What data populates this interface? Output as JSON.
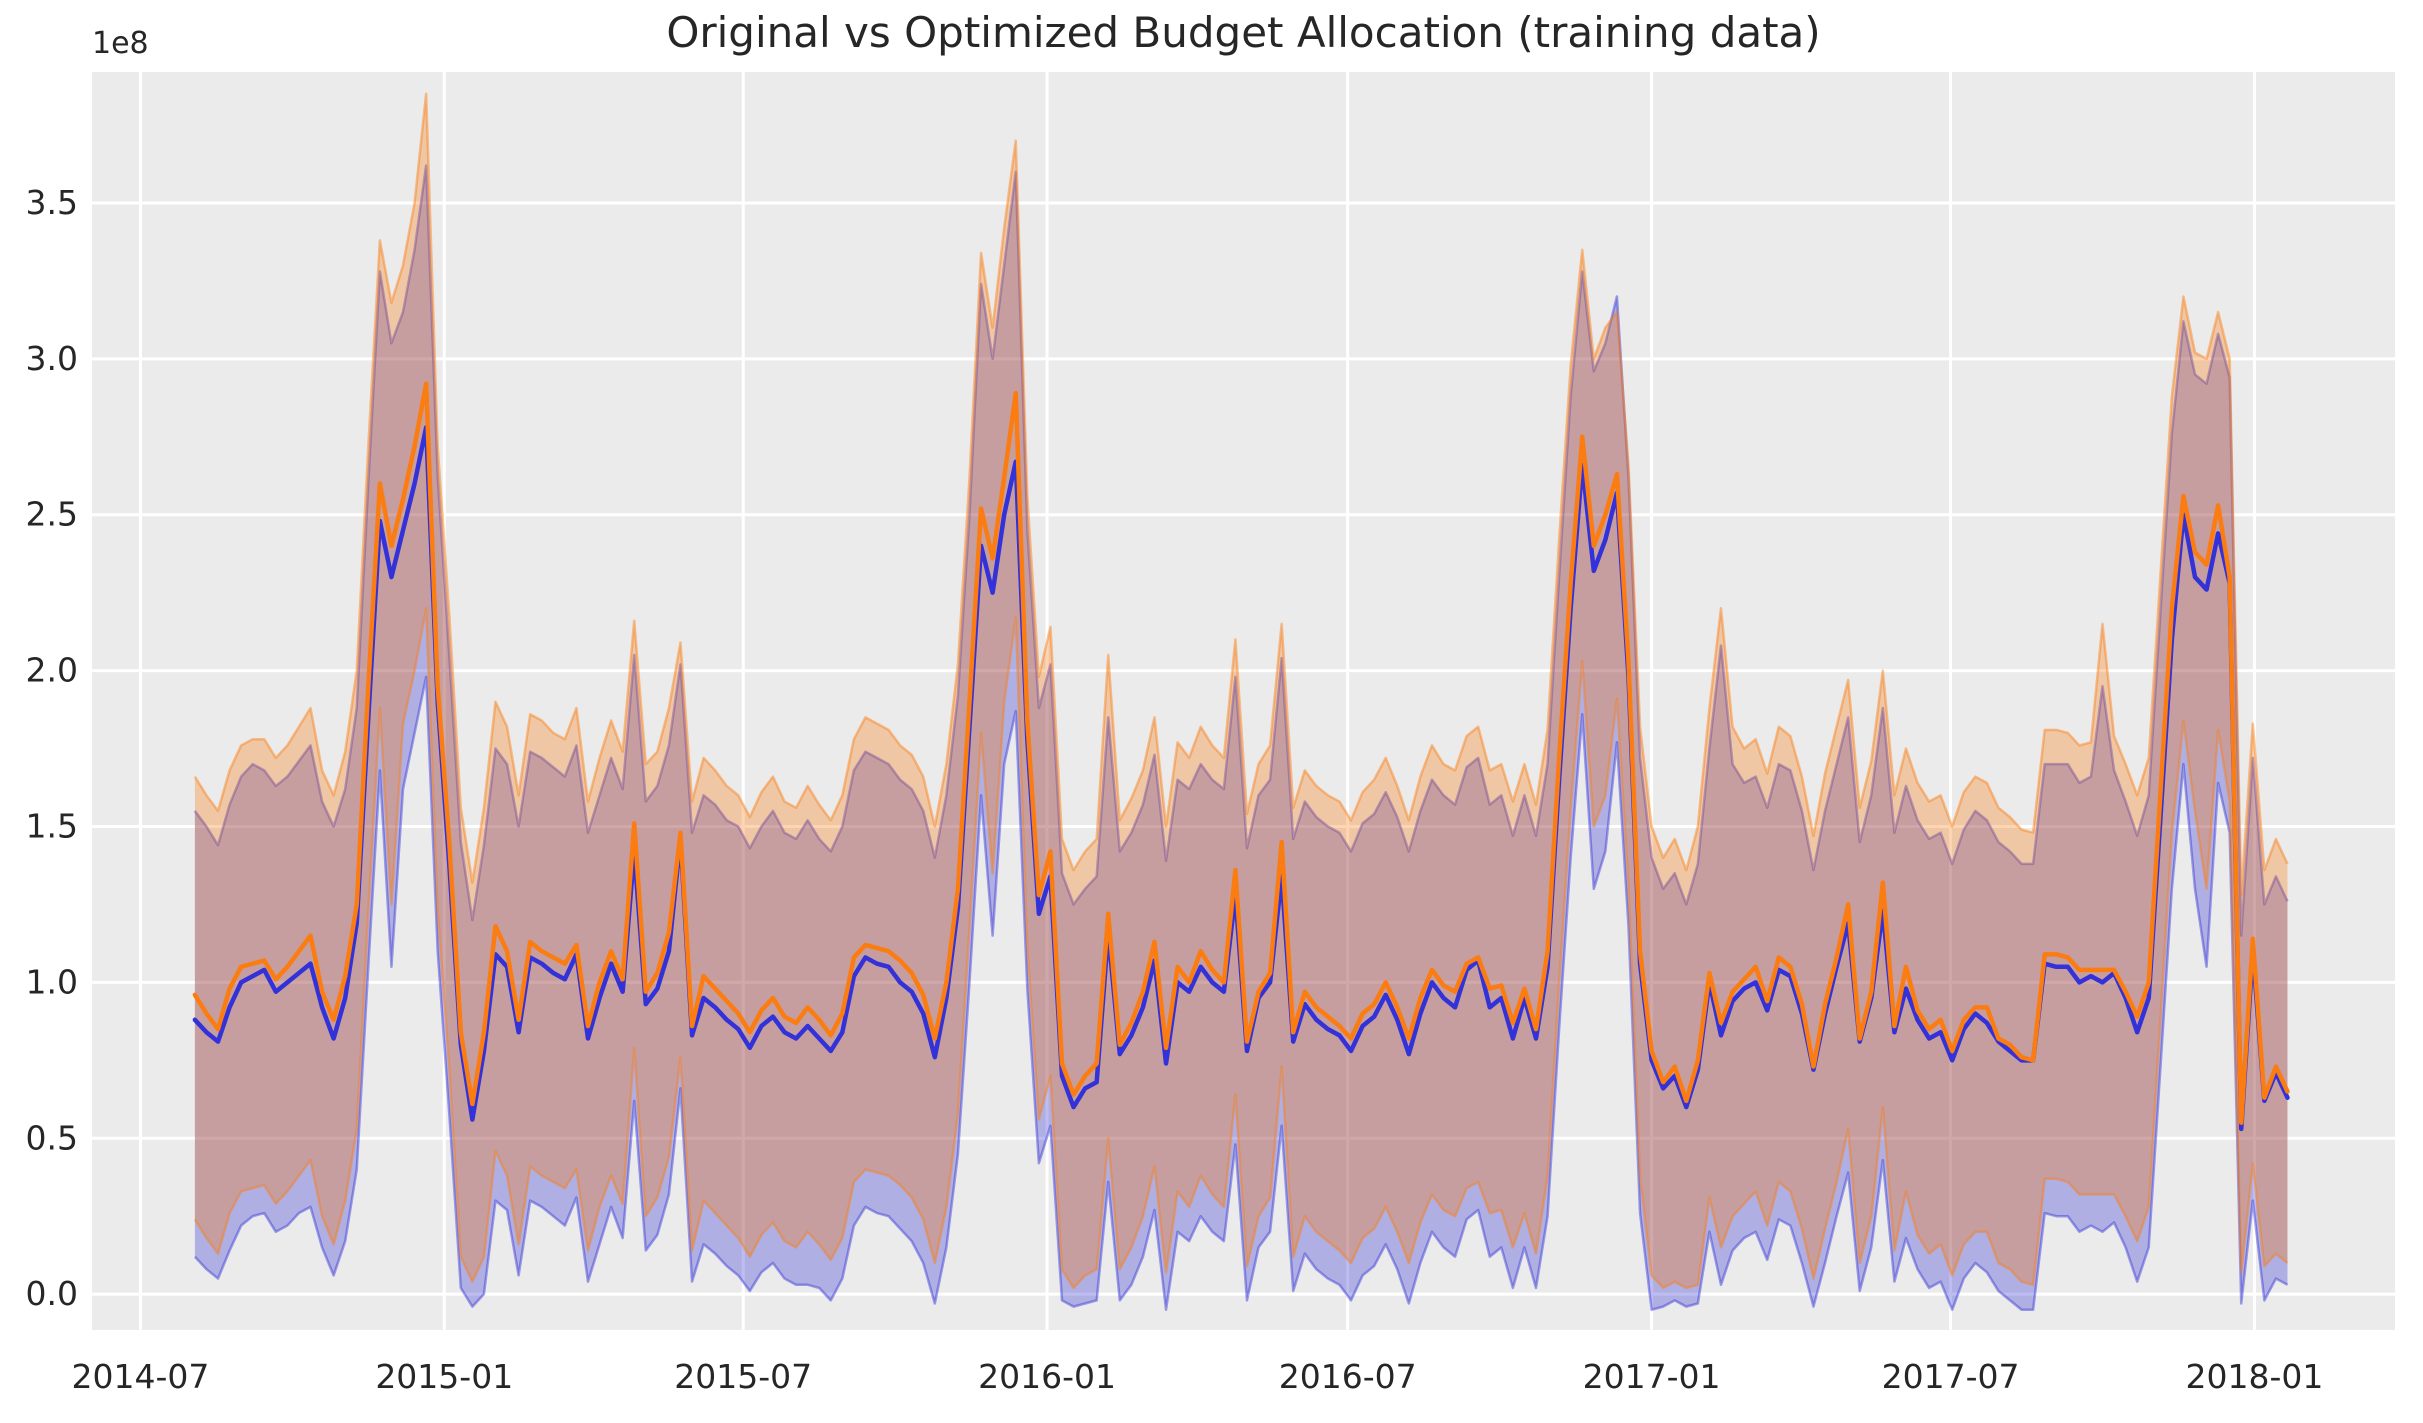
{
  "title": "Original vs Optimized Budget Allocation (training data)",
  "offset_label": "1e8",
  "colors": {
    "plot_background": "#ebebeb",
    "grid": "#ffffff",
    "text": "#262626",
    "original_line": "#3332d8",
    "optimized_line": "#fb7c11"
  },
  "chart_data": {
    "type": "line",
    "title": "Original vs Optimized Budget Allocation (training data)",
    "xlabel": "",
    "ylabel": "",
    "y_offset_text": "1e8",
    "x_start_date": "2014-08-03",
    "x_frequency": "weekly",
    "n_points": 182,
    "grid": true,
    "legend_position": "none",
    "xlim_weeks": [
      -8.9,
      190.3
    ],
    "ylim": [
      -0.115,
      3.92
    ],
    "x_tick_labels": [
      "2014-07",
      "2015-01",
      "2015-07",
      "2016-01",
      "2016-07",
      "2017-01",
      "2017-07",
      "2018-01"
    ],
    "x_tick_weeks": [
      -4.71,
      21.57,
      47.43,
      73.71,
      99.71,
      126.0,
      151.86,
      178.14
    ],
    "y_tick_labels": [
      "0.0",
      "0.5",
      "1.0",
      "1.5",
      "2.0",
      "2.5",
      "3.0",
      "3.5"
    ],
    "y_tick_values": [
      0.0,
      0.5,
      1.0,
      1.5,
      2.0,
      2.5,
      3.0,
      3.5
    ],
    "series": [
      {
        "name": "original",
        "color": "#3332d8",
        "band_alpha": 0.32,
        "values": [
          0.88,
          0.84,
          0.81,
          0.92,
          1.0,
          1.02,
          1.04,
          0.97,
          1.0,
          1.03,
          1.06,
          0.92,
          0.82,
          0.95,
          1.19,
          1.85,
          2.48,
          2.3,
          2.45,
          2.6,
          2.78,
          1.9,
          1.38,
          0.8,
          0.56,
          0.78,
          1.09,
          1.05,
          0.84,
          1.08,
          1.06,
          1.03,
          1.01,
          1.09,
          0.82,
          0.95,
          1.06,
          0.97,
          1.42,
          0.93,
          0.98,
          1.1,
          1.46,
          0.83,
          0.95,
          0.92,
          0.88,
          0.85,
          0.79,
          0.86,
          0.89,
          0.84,
          0.82,
          0.86,
          0.82,
          0.78,
          0.84,
          1.02,
          1.08,
          1.06,
          1.05,
          1.0,
          0.97,
          0.9,
          0.76,
          0.95,
          1.24,
          1.82,
          2.4,
          2.25,
          2.5,
          2.67,
          1.78,
          1.22,
          1.34,
          0.7,
          0.6,
          0.66,
          0.68,
          1.16,
          0.77,
          0.83,
          0.92,
          1.07,
          0.74,
          1.0,
          0.97,
          1.05,
          1.0,
          0.97,
          1.28,
          0.78,
          0.95,
          1.0,
          1.34,
          0.81,
          0.93,
          0.88,
          0.85,
          0.83,
          0.78,
          0.86,
          0.89,
          0.96,
          0.88,
          0.77,
          0.9,
          1.0,
          0.95,
          0.92,
          1.04,
          1.07,
          0.92,
          0.95,
          0.82,
          0.95,
          0.82,
          1.05,
          1.65,
          2.2,
          2.66,
          2.32,
          2.42,
          2.57,
          1.98,
          1.06,
          0.75,
          0.66,
          0.7,
          0.6,
          0.72,
          1.0,
          0.83,
          0.94,
          0.98,
          1.0,
          0.91,
          1.04,
          1.02,
          0.9,
          0.72,
          0.9,
          1.05,
          1.19,
          0.81,
          0.95,
          1.23,
          0.84,
          0.98,
          0.88,
          0.82,
          0.84,
          0.75,
          0.85,
          0.9,
          0.87,
          0.81,
          0.78,
          0.75,
          0.75,
          1.06,
          1.05,
          1.05,
          1.0,
          1.02,
          1.0,
          1.03,
          0.95,
          0.84,
          0.95,
          1.52,
          2.1,
          2.5,
          2.3,
          2.26,
          2.44,
          2.28,
          0.53,
          1.1,
          0.62,
          0.71,
          0.63
        ],
        "band_low": [
          0.12,
          0.08,
          0.05,
          0.14,
          0.22,
          0.25,
          0.26,
          0.2,
          0.22,
          0.26,
          0.28,
          0.15,
          0.06,
          0.17,
          0.4,
          1.05,
          1.68,
          1.05,
          1.62,
          1.8,
          1.98,
          1.1,
          0.58,
          0.02,
          -0.04,
          0.0,
          0.3,
          0.27,
          0.06,
          0.3,
          0.28,
          0.25,
          0.22,
          0.31,
          0.04,
          0.16,
          0.28,
          0.18,
          0.62,
          0.14,
          0.19,
          0.32,
          0.66,
          0.04,
          0.16,
          0.13,
          0.09,
          0.06,
          0.01,
          0.07,
          0.1,
          0.05,
          0.03,
          0.03,
          0.02,
          -0.02,
          0.05,
          0.22,
          0.28,
          0.26,
          0.25,
          0.21,
          0.17,
          0.1,
          -0.03,
          0.15,
          0.45,
          1.0,
          1.6,
          1.15,
          1.7,
          1.87,
          0.98,
          0.42,
          0.54,
          -0.02,
          -0.04,
          -0.03,
          -0.02,
          0.36,
          -0.02,
          0.03,
          0.12,
          0.27,
          -0.05,
          0.2,
          0.17,
          0.25,
          0.2,
          0.17,
          0.48,
          -0.02,
          0.15,
          0.2,
          0.54,
          0.01,
          0.13,
          0.08,
          0.05,
          0.03,
          -0.02,
          0.06,
          0.09,
          0.16,
          0.08,
          -0.03,
          0.1,
          0.2,
          0.15,
          0.12,
          0.24,
          0.27,
          0.12,
          0.15,
          0.02,
          0.15,
          0.02,
          0.25,
          0.85,
          1.4,
          1.86,
          1.3,
          1.42,
          1.77,
          1.18,
          0.26,
          -0.05,
          -0.04,
          -0.02,
          -0.04,
          -0.03,
          0.2,
          0.03,
          0.14,
          0.18,
          0.2,
          0.11,
          0.24,
          0.22,
          0.1,
          -0.04,
          0.1,
          0.25,
          0.39,
          0.01,
          0.15,
          0.43,
          0.04,
          0.18,
          0.08,
          0.02,
          0.04,
          -0.05,
          0.05,
          0.1,
          0.07,
          0.01,
          -0.02,
          -0.05,
          -0.05,
          0.26,
          0.25,
          0.25,
          0.2,
          0.22,
          0.2,
          0.23,
          0.15,
          0.04,
          0.15,
          0.72,
          1.3,
          1.7,
          1.3,
          1.05,
          1.64,
          1.48,
          -0.03,
          0.3,
          -0.02,
          0.05,
          0.03
        ],
        "band_high": [
          1.55,
          1.5,
          1.44,
          1.57,
          1.66,
          1.7,
          1.68,
          1.63,
          1.66,
          1.71,
          1.76,
          1.58,
          1.5,
          1.62,
          1.88,
          2.6,
          3.28,
          3.05,
          3.15,
          3.35,
          3.62,
          2.62,
          2.05,
          1.45,
          1.2,
          1.44,
          1.75,
          1.7,
          1.5,
          1.74,
          1.72,
          1.69,
          1.66,
          1.76,
          1.48,
          1.6,
          1.72,
          1.62,
          2.05,
          1.58,
          1.63,
          1.76,
          2.02,
          1.48,
          1.6,
          1.57,
          1.52,
          1.5,
          1.43,
          1.5,
          1.55,
          1.48,
          1.46,
          1.52,
          1.46,
          1.42,
          1.5,
          1.68,
          1.74,
          1.72,
          1.7,
          1.65,
          1.62,
          1.55,
          1.4,
          1.6,
          1.92,
          2.5,
          3.24,
          3.0,
          3.3,
          3.6,
          2.45,
          1.88,
          2.02,
          1.35,
          1.25,
          1.3,
          1.34,
          1.85,
          1.42,
          1.48,
          1.57,
          1.73,
          1.39,
          1.65,
          1.62,
          1.7,
          1.65,
          1.62,
          1.98,
          1.43,
          1.6,
          1.65,
          2.04,
          1.46,
          1.58,
          1.53,
          1.5,
          1.48,
          1.42,
          1.51,
          1.54,
          1.61,
          1.53,
          1.42,
          1.55,
          1.65,
          1.6,
          1.57,
          1.69,
          1.72,
          1.57,
          1.6,
          1.47,
          1.6,
          1.47,
          1.7,
          2.3,
          2.88,
          3.28,
          2.96,
          3.05,
          3.2,
          2.62,
          1.72,
          1.4,
          1.3,
          1.35,
          1.25,
          1.38,
          1.75,
          2.08,
          1.7,
          1.64,
          1.66,
          1.56,
          1.7,
          1.68,
          1.55,
          1.36,
          1.55,
          1.7,
          1.85,
          1.45,
          1.6,
          1.88,
          1.48,
          1.63,
          1.52,
          1.46,
          1.48,
          1.38,
          1.49,
          1.55,
          1.52,
          1.45,
          1.42,
          1.38,
          1.38,
          1.7,
          1.7,
          1.7,
          1.64,
          1.66,
          1.95,
          1.68,
          1.58,
          1.47,
          1.6,
          2.18,
          2.76,
          3.12,
          2.95,
          2.92,
          3.08,
          2.94,
          1.15,
          1.72,
          1.25,
          1.34,
          1.26
        ]
      },
      {
        "name": "optimized",
        "color": "#fb7c11",
        "band_alpha": 0.32,
        "values": [
          0.96,
          0.9,
          0.85,
          0.98,
          1.05,
          1.06,
          1.07,
          1.01,
          1.05,
          1.1,
          1.15,
          0.97,
          0.88,
          1.02,
          1.25,
          1.95,
          2.6,
          2.4,
          2.55,
          2.72,
          2.92,
          1.95,
          1.45,
          0.84,
          0.61,
          0.84,
          1.18,
          1.1,
          0.88,
          1.13,
          1.1,
          1.08,
          1.06,
          1.12,
          0.86,
          1.0,
          1.1,
          1.01,
          1.51,
          0.97,
          1.03,
          1.16,
          1.48,
          0.86,
          1.02,
          0.98,
          0.94,
          0.9,
          0.84,
          0.91,
          0.95,
          0.89,
          0.87,
          0.92,
          0.88,
          0.83,
          0.9,
          1.08,
          1.12,
          1.11,
          1.1,
          1.07,
          1.03,
          0.96,
          0.82,
          1.0,
          1.3,
          1.9,
          2.52,
          2.36,
          2.62,
          2.89,
          1.84,
          1.28,
          1.42,
          0.74,
          0.64,
          0.7,
          0.74,
          1.22,
          0.8,
          0.87,
          0.97,
          1.13,
          0.79,
          1.05,
          1.0,
          1.1,
          1.04,
          1.0,
          1.36,
          0.81,
          0.97,
          1.03,
          1.45,
          0.84,
          0.97,
          0.92,
          0.89,
          0.86,
          0.82,
          0.9,
          0.93,
          1.0,
          0.92,
          0.82,
          0.95,
          1.04,
          0.99,
          0.97,
          1.06,
          1.08,
          0.98,
          0.99,
          0.87,
          0.98,
          0.85,
          1.1,
          1.72,
          2.28,
          2.75,
          2.4,
          2.5,
          2.63,
          2.03,
          1.1,
          0.78,
          0.68,
          0.73,
          0.62,
          0.75,
          1.03,
          0.87,
          0.97,
          1.01,
          1.05,
          0.94,
          1.08,
          1.05,
          0.93,
          0.73,
          0.93,
          1.08,
          1.25,
          0.82,
          0.97,
          1.32,
          0.86,
          1.05,
          0.91,
          0.85,
          0.88,
          0.78,
          0.88,
          0.92,
          0.92,
          0.82,
          0.8,
          0.76,
          0.75,
          1.09,
          1.09,
          1.08,
          1.04,
          1.04,
          1.04,
          1.04,
          0.97,
          0.89,
          1.0,
          1.6,
          2.2,
          2.56,
          2.38,
          2.34,
          2.53,
          2.3,
          0.55,
          1.14,
          0.63,
          0.73,
          0.65
        ],
        "band_low": [
          0.24,
          0.18,
          0.13,
          0.26,
          0.33,
          0.34,
          0.35,
          0.29,
          0.33,
          0.38,
          0.43,
          0.25,
          0.16,
          0.3,
          0.53,
          1.23,
          1.88,
          1.25,
          1.83,
          2.0,
          2.2,
          1.23,
          0.73,
          0.12,
          0.04,
          0.12,
          0.46,
          0.38,
          0.16,
          0.41,
          0.38,
          0.36,
          0.34,
          0.4,
          0.14,
          0.28,
          0.38,
          0.29,
          0.79,
          0.25,
          0.31,
          0.44,
          0.76,
          0.14,
          0.3,
          0.26,
          0.22,
          0.18,
          0.12,
          0.19,
          0.23,
          0.17,
          0.15,
          0.2,
          0.16,
          0.11,
          0.18,
          0.36,
          0.4,
          0.39,
          0.38,
          0.35,
          0.31,
          0.24,
          0.1,
          0.28,
          0.58,
          1.18,
          1.8,
          1.35,
          1.9,
          2.17,
          1.12,
          0.56,
          0.7,
          0.08,
          0.02,
          0.06,
          0.08,
          0.5,
          0.08,
          0.15,
          0.25,
          0.41,
          0.07,
          0.33,
          0.28,
          0.38,
          0.32,
          0.28,
          0.64,
          0.09,
          0.25,
          0.31,
          0.73,
          0.12,
          0.25,
          0.2,
          0.17,
          0.14,
          0.1,
          0.18,
          0.21,
          0.28,
          0.2,
          0.1,
          0.23,
          0.32,
          0.27,
          0.25,
          0.34,
          0.36,
          0.26,
          0.27,
          0.15,
          0.26,
          0.13,
          0.38,
          1.0,
          1.56,
          2.03,
          1.5,
          1.6,
          1.91,
          1.31,
          0.38,
          0.06,
          0.02,
          0.04,
          0.02,
          0.03,
          0.31,
          0.15,
          0.25,
          0.29,
          0.33,
          0.22,
          0.36,
          0.33,
          0.21,
          0.05,
          0.21,
          0.36,
          0.53,
          0.1,
          0.25,
          0.6,
          0.14,
          0.33,
          0.19,
          0.13,
          0.16,
          0.06,
          0.16,
          0.2,
          0.2,
          0.1,
          0.08,
          0.04,
          0.03,
          0.37,
          0.37,
          0.36,
          0.32,
          0.32,
          0.32,
          0.32,
          0.25,
          0.17,
          0.28,
          0.88,
          1.48,
          1.84,
          1.55,
          1.3,
          1.81,
          1.58,
          0.07,
          0.42,
          0.09,
          0.13,
          0.1
        ],
        "band_high": [
          1.66,
          1.6,
          1.55,
          1.68,
          1.76,
          1.78,
          1.78,
          1.72,
          1.76,
          1.82,
          1.88,
          1.68,
          1.6,
          1.74,
          2.0,
          2.72,
          3.38,
          3.18,
          3.3,
          3.5,
          3.85,
          2.72,
          2.18,
          1.56,
          1.32,
          1.56,
          1.9,
          1.82,
          1.6,
          1.86,
          1.84,
          1.8,
          1.78,
          1.88,
          1.58,
          1.72,
          1.84,
          1.74,
          2.16,
          1.7,
          1.74,
          1.88,
          2.09,
          1.58,
          1.72,
          1.68,
          1.63,
          1.6,
          1.53,
          1.61,
          1.66,
          1.58,
          1.56,
          1.63,
          1.57,
          1.52,
          1.6,
          1.78,
          1.85,
          1.83,
          1.81,
          1.76,
          1.73,
          1.66,
          1.5,
          1.7,
          2.02,
          2.62,
          3.34,
          3.1,
          3.42,
          3.7,
          2.56,
          1.98,
          2.14,
          1.46,
          1.36,
          1.42,
          1.46,
          2.05,
          1.52,
          1.59,
          1.68,
          1.85,
          1.5,
          1.77,
          1.72,
          1.82,
          1.76,
          1.72,
          2.1,
          1.54,
          1.7,
          1.76,
          2.15,
          1.56,
          1.68,
          1.63,
          1.6,
          1.58,
          1.52,
          1.61,
          1.65,
          1.72,
          1.63,
          1.52,
          1.66,
          1.76,
          1.7,
          1.68,
          1.79,
          1.82,
          1.68,
          1.7,
          1.58,
          1.7,
          1.57,
          1.81,
          2.42,
          2.98,
          3.35,
          3.0,
          3.1,
          3.15,
          2.66,
          1.82,
          1.5,
          1.4,
          1.46,
          1.36,
          1.5,
          1.88,
          2.2,
          1.82,
          1.75,
          1.78,
          1.67,
          1.82,
          1.79,
          1.66,
          1.47,
          1.67,
          1.82,
          1.97,
          1.56,
          1.71,
          2.0,
          1.6,
          1.75,
          1.64,
          1.58,
          1.6,
          1.5,
          1.61,
          1.66,
          1.64,
          1.56,
          1.53,
          1.49,
          1.48,
          1.81,
          1.81,
          1.8,
          1.76,
          1.77,
          2.15,
          1.79,
          1.7,
          1.6,
          1.72,
          2.3,
          2.88,
          3.2,
          3.02,
          3.0,
          3.15,
          3.0,
          1.28,
          1.83,
          1.36,
          1.46,
          1.38
        ]
      }
    ]
  }
}
